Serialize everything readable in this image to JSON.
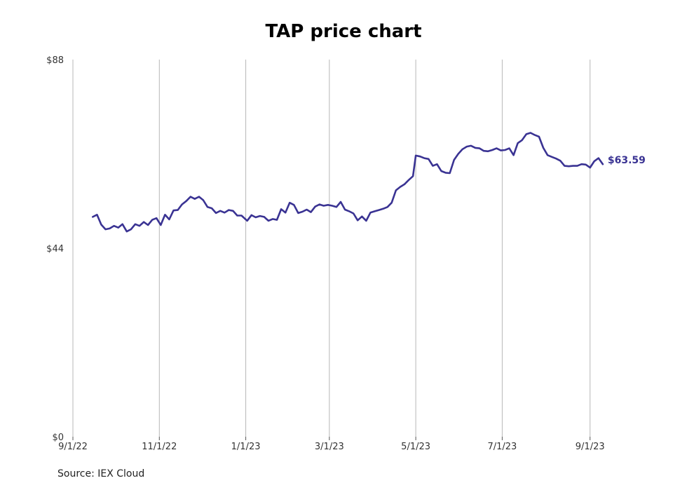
{
  "title": "TAP price chart",
  "source": "Source: IEX Cloud",
  "chart_data": {
    "type": "line",
    "title": "TAP price chart",
    "xlabel": "",
    "ylabel": "",
    "x_ticks": [
      "9/1/22",
      "11/1/22",
      "1/1/23",
      "3/1/23",
      "5/1/23",
      "7/1/23",
      "9/1/23"
    ],
    "y_ticks": [
      "$0",
      "$44",
      "$88"
    ],
    "ylim": [
      0,
      88
    ],
    "xlim": [
      "2022-09-01",
      "2023-09-15"
    ],
    "grid": "vertical",
    "line_color": "#3a3393",
    "end_label": "$63.59",
    "series": [
      {
        "points": [
          [
            "2022-09-15",
            51.3
          ],
          [
            "2022-09-18",
            51.8
          ],
          [
            "2022-09-21",
            49.5
          ],
          [
            "2022-09-24",
            48.4
          ],
          [
            "2022-09-27",
            48.6
          ],
          [
            "2022-09-30",
            49.2
          ],
          [
            "2022-10-03",
            48.8
          ],
          [
            "2022-10-06",
            49.6
          ],
          [
            "2022-10-09",
            47.9
          ],
          [
            "2022-10-12",
            48.4
          ],
          [
            "2022-10-15",
            49.6
          ],
          [
            "2022-10-18",
            49.2
          ],
          [
            "2022-10-21",
            50.1
          ],
          [
            "2022-10-24",
            49.4
          ],
          [
            "2022-10-27",
            50.6
          ],
          [
            "2022-10-30",
            51.0
          ],
          [
            "2022-11-02",
            49.4
          ],
          [
            "2022-11-05",
            51.8
          ],
          [
            "2022-11-08",
            50.7
          ],
          [
            "2022-11-11",
            52.8
          ],
          [
            "2022-11-14",
            52.9
          ],
          [
            "2022-11-17",
            54.2
          ],
          [
            "2022-11-20",
            55.0
          ],
          [
            "2022-11-23",
            56.0
          ],
          [
            "2022-11-26",
            55.5
          ],
          [
            "2022-11-29",
            56.0
          ],
          [
            "2022-12-02",
            55.2
          ],
          [
            "2022-12-05",
            53.6
          ],
          [
            "2022-12-08",
            53.3
          ],
          [
            "2022-12-11",
            52.2
          ],
          [
            "2022-12-14",
            52.7
          ],
          [
            "2022-12-17",
            52.3
          ],
          [
            "2022-12-20",
            52.9
          ],
          [
            "2022-12-23",
            52.7
          ],
          [
            "2022-12-26",
            51.6
          ],
          [
            "2022-12-29",
            51.6
          ],
          [
            "2023-01-02",
            50.4
          ],
          [
            "2023-01-05",
            51.7
          ],
          [
            "2023-01-08",
            51.2
          ],
          [
            "2023-01-11",
            51.5
          ],
          [
            "2023-01-14",
            51.3
          ],
          [
            "2023-01-17",
            50.4
          ],
          [
            "2023-01-20",
            50.8
          ],
          [
            "2023-01-23",
            50.6
          ],
          [
            "2023-01-26",
            53.1
          ],
          [
            "2023-01-29",
            52.3
          ],
          [
            "2023-02-01",
            54.6
          ],
          [
            "2023-02-04",
            54.1
          ],
          [
            "2023-02-07",
            52.2
          ],
          [
            "2023-02-10",
            52.5
          ],
          [
            "2023-02-13",
            53.0
          ],
          [
            "2023-02-16",
            52.4
          ],
          [
            "2023-02-19",
            53.7
          ],
          [
            "2023-02-22",
            54.2
          ],
          [
            "2023-02-25",
            53.9
          ],
          [
            "2023-02-28",
            54.1
          ],
          [
            "2023-03-03",
            53.9
          ],
          [
            "2023-03-06",
            53.6
          ],
          [
            "2023-03-09",
            54.8
          ],
          [
            "2023-03-12",
            53.0
          ],
          [
            "2023-03-15",
            52.6
          ],
          [
            "2023-03-18",
            52.1
          ],
          [
            "2023-03-21",
            50.5
          ],
          [
            "2023-03-24",
            51.4
          ],
          [
            "2023-03-27",
            50.4
          ],
          [
            "2023-03-30",
            52.3
          ],
          [
            "2023-04-02",
            52.6
          ],
          [
            "2023-04-05",
            52.9
          ],
          [
            "2023-04-08",
            53.2
          ],
          [
            "2023-04-11",
            53.6
          ],
          [
            "2023-04-14",
            54.6
          ],
          [
            "2023-04-17",
            57.5
          ],
          [
            "2023-04-20",
            58.3
          ],
          [
            "2023-04-23",
            58.9
          ],
          [
            "2023-04-26",
            59.9
          ],
          [
            "2023-04-29",
            60.8
          ],
          [
            "2023-05-01",
            65.6
          ],
          [
            "2023-05-04",
            65.4
          ],
          [
            "2023-05-07",
            65.0
          ],
          [
            "2023-05-10",
            64.8
          ],
          [
            "2023-05-13",
            63.2
          ],
          [
            "2023-05-16",
            63.6
          ],
          [
            "2023-05-19",
            62.0
          ],
          [
            "2023-05-22",
            61.6
          ],
          [
            "2023-05-25",
            61.5
          ],
          [
            "2023-05-28",
            64.6
          ],
          [
            "2023-05-31",
            66.0
          ],
          [
            "2023-06-03",
            67.1
          ],
          [
            "2023-06-06",
            67.7
          ],
          [
            "2023-06-09",
            67.9
          ],
          [
            "2023-06-12",
            67.4
          ],
          [
            "2023-06-15",
            67.3
          ],
          [
            "2023-06-18",
            66.7
          ],
          [
            "2023-06-21",
            66.6
          ],
          [
            "2023-06-24",
            66.9
          ],
          [
            "2023-06-27",
            67.3
          ],
          [
            "2023-06-30",
            66.8
          ],
          [
            "2023-07-03",
            66.9
          ],
          [
            "2023-07-06",
            67.3
          ],
          [
            "2023-07-09",
            65.7
          ],
          [
            "2023-07-12",
            68.5
          ],
          [
            "2023-07-15",
            69.2
          ],
          [
            "2023-07-18",
            70.6
          ],
          [
            "2023-07-21",
            70.9
          ],
          [
            "2023-07-24",
            70.4
          ],
          [
            "2023-07-27",
            70.0
          ],
          [
            "2023-07-30",
            67.4
          ],
          [
            "2023-08-02",
            65.7
          ],
          [
            "2023-08-05",
            65.3
          ],
          [
            "2023-08-08",
            64.9
          ],
          [
            "2023-08-11",
            64.4
          ],
          [
            "2023-08-14",
            63.2
          ],
          [
            "2023-08-17",
            63.1
          ],
          [
            "2023-08-20",
            63.2
          ],
          [
            "2023-08-23",
            63.2
          ],
          [
            "2023-08-26",
            63.6
          ],
          [
            "2023-08-29",
            63.5
          ],
          [
            "2023-09-01",
            62.8
          ],
          [
            "2023-09-04",
            64.3
          ],
          [
            "2023-09-07",
            65.0
          ],
          [
            "2023-09-10",
            63.6
          ]
        ]
      }
    ]
  }
}
